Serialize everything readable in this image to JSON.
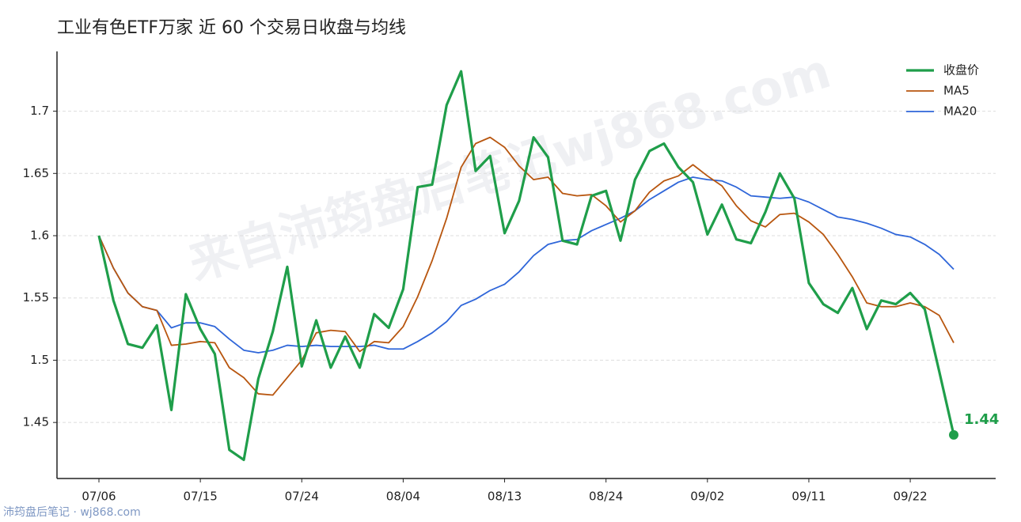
{
  "chart_data": {
    "type": "line",
    "title": "工业有色ETF万家 近 60 个交易日收盘与均线",
    "watermark": "来自沛筠盘后笔记wj868.com",
    "footer": "沛筠盘后笔记 · wj868.com",
    "categories": [
      "07/06",
      null,
      null,
      null,
      null,
      null,
      null,
      "07/15",
      null,
      null,
      null,
      null,
      null,
      null,
      "07/24",
      null,
      null,
      null,
      null,
      null,
      null,
      "08/04",
      null,
      null,
      null,
      null,
      null,
      null,
      "08/13",
      null,
      null,
      null,
      null,
      null,
      null,
      "08/24",
      null,
      null,
      null,
      null,
      null,
      null,
      "09/02",
      null,
      null,
      null,
      null,
      null,
      null,
      "09/11",
      null,
      null,
      null,
      null,
      null,
      null,
      "09/22",
      null,
      null,
      null
    ],
    "ylim": [
      1.405,
      1.748
    ],
    "yticks": [
      1.45,
      1.5,
      1.55,
      1.6,
      1.65,
      1.7
    ],
    "grid": true,
    "legend": "upper right",
    "series": [
      {
        "name": "收盘价",
        "color": "#1f9e4a",
        "values": [
          1.6,
          1.548,
          1.513,
          1.51,
          1.528,
          1.46,
          1.553,
          1.525,
          1.505,
          1.428,
          1.42,
          1.485,
          1.523,
          1.575,
          1.495,
          1.532,
          1.494,
          1.519,
          1.494,
          1.537,
          1.526,
          1.557,
          1.639,
          1.641,
          1.705,
          1.732,
          1.652,
          1.664,
          1.602,
          1.628,
          1.679,
          1.663,
          1.596,
          1.593,
          1.632,
          1.636,
          1.596,
          1.645,
          1.668,
          1.674,
          1.655,
          1.643,
          1.601,
          1.625,
          1.597,
          1.594,
          1.619,
          1.65,
          1.63,
          1.562,
          1.545,
          1.538,
          1.558,
          1.525,
          1.548,
          1.545,
          1.554,
          1.541,
          1.491,
          1.44
        ]
      },
      {
        "name": "MA5",
        "color": "#b8560f",
        "values": [
          1.6,
          1.574,
          1.554,
          1.543,
          1.54,
          1.512,
          1.513,
          1.515,
          1.514,
          1.494,
          1.486,
          1.473,
          1.472,
          1.486,
          1.5,
          1.522,
          1.524,
          1.523,
          1.507,
          1.515,
          1.514,
          1.527,
          1.551,
          1.58,
          1.614,
          1.655,
          1.674,
          1.679,
          1.671,
          1.656,
          1.645,
          1.647,
          1.634,
          1.632,
          1.633,
          1.624,
          1.611,
          1.62,
          1.635,
          1.644,
          1.648,
          1.657,
          1.648,
          1.64,
          1.624,
          1.612,
          1.607,
          1.617,
          1.618,
          1.611,
          1.601,
          1.585,
          1.567,
          1.546,
          1.543,
          1.543,
          1.546,
          1.543,
          1.536,
          1.514
        ]
      },
      {
        "name": "MA20",
        "color": "#2f66d9",
        "values": [
          1.6,
          1.574,
          1.554,
          1.543,
          1.54,
          1.526,
          1.53,
          1.53,
          1.527,
          1.517,
          1.508,
          1.506,
          1.508,
          1.512,
          1.511,
          1.512,
          1.511,
          1.511,
          1.511,
          1.512,
          1.509,
          1.509,
          1.515,
          1.522,
          1.531,
          1.544,
          1.549,
          1.556,
          1.561,
          1.571,
          1.584,
          1.593,
          1.596,
          1.597,
          1.604,
          1.609,
          1.614,
          1.62,
          1.629,
          1.636,
          1.643,
          1.647,
          1.645,
          1.644,
          1.639,
          1.632,
          1.631,
          1.63,
          1.631,
          1.627,
          1.621,
          1.615,
          1.613,
          1.61,
          1.606,
          1.601,
          1.599,
          1.593,
          1.585,
          1.573
        ]
      }
    ]
  }
}
